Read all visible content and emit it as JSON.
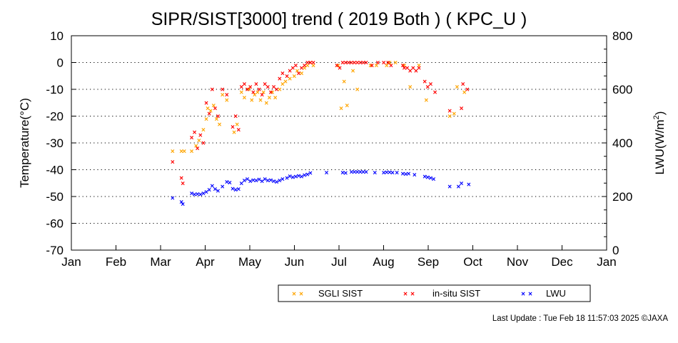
{
  "chart_data": {
    "type": "scatter",
    "title": "SIPR/SIST[3000] trend ( 2019 Both ) ( KPC_U )",
    "ylabel": "Temperature(°C)",
    "y2label_main": "LWU(W/m",
    "y2label_sup": "2",
    "y2label_end": ")",
    "ylim": [
      -70,
      10
    ],
    "y2lim": [
      0,
      800
    ],
    "yticks": [
      "10",
      "0",
      "-10",
      "-20",
      "-30",
      "-40",
      "-50",
      "-60",
      "-70"
    ],
    "y2ticks": [
      "800",
      "600",
      "400",
      "200",
      "0"
    ],
    "months": [
      "Jan",
      "Feb",
      "Mar",
      "Apr",
      "May",
      "Jun",
      "Jul",
      "Aug",
      "Sep",
      "Oct",
      "Nov",
      "Dec",
      "Jan"
    ],
    "grid": true,
    "legend_position": "bottom-right",
    "footer": "Last Update : Tue Feb 18 11:57:03 2025 ©JAXA",
    "series": [
      {
        "name": "SGLI SIST",
        "color": "#ffa500",
        "axis": "left",
        "points": [
          [
            "2019-03-11",
            -33
          ],
          [
            "2019-03-17",
            -33
          ],
          [
            "2019-03-19",
            -33
          ],
          [
            "2019-03-24",
            -33
          ],
          [
            "2019-03-27",
            -31
          ],
          [
            "2019-03-29",
            -29
          ],
          [
            "2019-04-01",
            -25
          ],
          [
            "2019-04-03",
            -21
          ],
          [
            "2019-04-04",
            -17
          ],
          [
            "2019-04-06",
            -18
          ],
          [
            "2019-04-08",
            -16
          ],
          [
            "2019-04-10",
            -21
          ],
          [
            "2019-04-12",
            -23
          ],
          [
            "2019-04-14",
            -12
          ],
          [
            "2019-04-17",
            -14
          ],
          [
            "2019-04-22",
            -26
          ],
          [
            "2019-04-24",
            -23
          ],
          [
            "2019-04-27",
            -11
          ],
          [
            "2019-04-29",
            -13
          ],
          [
            "2019-05-02",
            -10
          ],
          [
            "2019-05-04",
            -14
          ],
          [
            "2019-05-06",
            -12
          ],
          [
            "2019-05-08",
            -11
          ],
          [
            "2019-05-10",
            -14
          ],
          [
            "2019-05-12",
            -11
          ],
          [
            "2019-05-14",
            -15
          ],
          [
            "2019-05-16",
            -13
          ],
          [
            "2019-05-18",
            -11
          ],
          [
            "2019-05-20",
            -13
          ],
          [
            "2019-05-23",
            -10
          ],
          [
            "2019-05-25",
            -8
          ],
          [
            "2019-05-27",
            -7
          ],
          [
            "2019-05-30",
            -6
          ],
          [
            "2019-06-02",
            -5
          ],
          [
            "2019-06-04",
            -3
          ],
          [
            "2019-06-07",
            -4
          ],
          [
            "2019-06-09",
            -2
          ],
          [
            "2019-06-11",
            -1
          ],
          [
            "2019-06-13",
            0
          ],
          [
            "2019-06-15",
            -1
          ],
          [
            "2019-07-02",
            -1
          ],
          [
            "2019-07-04",
            -17
          ],
          [
            "2019-07-06",
            -7
          ],
          [
            "2019-07-08",
            -16
          ],
          [
            "2019-07-12",
            -3
          ],
          [
            "2019-07-15",
            -10
          ],
          [
            "2019-07-24",
            -1
          ],
          [
            "2019-07-28",
            -1
          ],
          [
            "2019-08-04",
            -1
          ],
          [
            "2019-08-06",
            0
          ],
          [
            "2019-08-10",
            0
          ],
          [
            "2019-08-16",
            -1
          ],
          [
            "2019-08-20",
            -9
          ],
          [
            "2019-08-26",
            -1
          ],
          [
            "2019-08-31",
            -14
          ],
          [
            "2019-09-16",
            -20
          ],
          [
            "2019-09-19",
            -19
          ],
          [
            "2019-09-21",
            -9
          ],
          [
            "2019-09-26",
            -11
          ]
        ]
      },
      {
        "name": "in-situ SIST",
        "color": "#ff0000",
        "axis": "left",
        "points": [
          [
            "2019-03-11",
            -37
          ],
          [
            "2019-03-17",
            -43
          ],
          [
            "2019-03-18",
            -45
          ],
          [
            "2019-03-24",
            -28
          ],
          [
            "2019-03-26",
            -26
          ],
          [
            "2019-03-28",
            -32
          ],
          [
            "2019-03-30",
            -27
          ],
          [
            "2019-04-01",
            -30
          ],
          [
            "2019-04-03",
            -15
          ],
          [
            "2019-04-05",
            -19
          ],
          [
            "2019-04-07",
            -10
          ],
          [
            "2019-04-09",
            -17
          ],
          [
            "2019-04-11",
            -20
          ],
          [
            "2019-04-14",
            -10
          ],
          [
            "2019-04-17",
            -12
          ],
          [
            "2019-04-21",
            -24
          ],
          [
            "2019-04-23",
            -20
          ],
          [
            "2019-04-25",
            -25
          ],
          [
            "2019-04-27",
            -9
          ],
          [
            "2019-04-29",
            -8
          ],
          [
            "2019-05-01",
            -10
          ],
          [
            "2019-05-03",
            -9
          ],
          [
            "2019-05-05",
            -11
          ],
          [
            "2019-05-07",
            -8
          ],
          [
            "2019-05-09",
            -10
          ],
          [
            "2019-05-11",
            -12
          ],
          [
            "2019-05-13",
            -8
          ],
          [
            "2019-05-15",
            -9
          ],
          [
            "2019-05-17",
            -11
          ],
          [
            "2019-05-19",
            -9
          ],
          [
            "2019-05-21",
            -10
          ],
          [
            "2019-05-23",
            -6
          ],
          [
            "2019-05-25",
            -4
          ],
          [
            "2019-05-28",
            -5
          ],
          [
            "2019-05-30",
            -3
          ],
          [
            "2019-06-01",
            -2
          ],
          [
            "2019-06-03",
            -1
          ],
          [
            "2019-06-05",
            -4
          ],
          [
            "2019-06-07",
            -2
          ],
          [
            "2019-06-09",
            -1
          ],
          [
            "2019-06-11",
            0
          ],
          [
            "2019-06-13",
            0
          ],
          [
            "2019-06-15",
            0
          ],
          [
            "2019-07-01",
            -1
          ],
          [
            "2019-07-03",
            -2
          ],
          [
            "2019-07-05",
            0
          ],
          [
            "2019-07-07",
            0
          ],
          [
            "2019-07-09",
            0
          ],
          [
            "2019-07-11",
            0
          ],
          [
            "2019-07-13",
            0
          ],
          [
            "2019-07-15",
            0
          ],
          [
            "2019-07-17",
            0
          ],
          [
            "2019-07-19",
            0
          ],
          [
            "2019-07-21",
            0
          ],
          [
            "2019-07-25",
            -1
          ],
          [
            "2019-07-29",
            0
          ],
          [
            "2019-08-02",
            0
          ],
          [
            "2019-08-05",
            0
          ],
          [
            "2019-08-07",
            -1
          ],
          [
            "2019-08-15",
            -1
          ],
          [
            "2019-08-16",
            -2
          ],
          [
            "2019-08-18",
            -2
          ],
          [
            "2019-08-20",
            -3
          ],
          [
            "2019-08-22",
            -2
          ],
          [
            "2019-08-24",
            -3
          ],
          [
            "2019-08-26",
            -2
          ],
          [
            "2019-08-30",
            -7
          ],
          [
            "2019-09-01",
            -9
          ],
          [
            "2019-09-03",
            -8
          ],
          [
            "2019-09-06",
            -11
          ],
          [
            "2019-09-16",
            -18
          ],
          [
            "2019-09-24",
            -17
          ],
          [
            "2019-09-25",
            -8
          ],
          [
            "2019-09-28",
            -10
          ]
        ]
      },
      {
        "name": "LWU",
        "color": "#0000ff",
        "axis": "right",
        "points": [
          [
            "2019-03-11",
            195
          ],
          [
            "2019-03-17",
            180
          ],
          [
            "2019-03-18",
            172
          ],
          [
            "2019-03-24",
            212
          ],
          [
            "2019-03-26",
            208
          ],
          [
            "2019-03-28",
            210
          ],
          [
            "2019-03-30",
            208
          ],
          [
            "2019-04-01",
            212
          ],
          [
            "2019-04-03",
            218
          ],
          [
            "2019-04-05",
            225
          ],
          [
            "2019-04-07",
            240
          ],
          [
            "2019-04-09",
            228
          ],
          [
            "2019-04-11",
            222
          ],
          [
            "2019-04-14",
            238
          ],
          [
            "2019-04-17",
            255
          ],
          [
            "2019-04-19",
            252
          ],
          [
            "2019-04-21",
            230
          ],
          [
            "2019-04-23",
            226
          ],
          [
            "2019-04-25",
            228
          ],
          [
            "2019-04-27",
            250
          ],
          [
            "2019-04-29",
            260
          ],
          [
            "2019-05-01",
            265
          ],
          [
            "2019-05-03",
            258
          ],
          [
            "2019-05-05",
            262
          ],
          [
            "2019-05-07",
            260
          ],
          [
            "2019-05-09",
            264
          ],
          [
            "2019-05-11",
            258
          ],
          [
            "2019-05-13",
            266
          ],
          [
            "2019-05-15",
            260
          ],
          [
            "2019-05-17",
            262
          ],
          [
            "2019-05-19",
            258
          ],
          [
            "2019-05-21",
            255
          ],
          [
            "2019-05-23",
            260
          ],
          [
            "2019-05-25",
            265
          ],
          [
            "2019-05-28",
            270
          ],
          [
            "2019-05-30",
            276
          ],
          [
            "2019-06-01",
            272
          ],
          [
            "2019-06-03",
            275
          ],
          [
            "2019-06-05",
            278
          ],
          [
            "2019-06-07",
            275
          ],
          [
            "2019-06-09",
            280
          ],
          [
            "2019-06-11",
            283
          ],
          [
            "2019-06-13",
            288
          ],
          [
            "2019-06-24",
            290
          ],
          [
            "2019-07-05",
            290
          ],
          [
            "2019-07-07",
            288
          ],
          [
            "2019-07-11",
            292
          ],
          [
            "2019-07-13",
            292
          ],
          [
            "2019-07-15",
            292
          ],
          [
            "2019-07-17",
            292
          ],
          [
            "2019-07-19",
            292
          ],
          [
            "2019-07-21",
            292
          ],
          [
            "2019-07-27",
            290
          ],
          [
            "2019-08-02",
            290
          ],
          [
            "2019-08-04",
            291
          ],
          [
            "2019-08-06",
            291
          ],
          [
            "2019-08-08",
            290
          ],
          [
            "2019-08-11",
            290
          ],
          [
            "2019-08-15",
            285
          ],
          [
            "2019-08-17",
            284
          ],
          [
            "2019-08-19",
            285
          ],
          [
            "2019-08-23",
            282
          ],
          [
            "2019-08-30",
            275
          ],
          [
            "2019-09-01",
            272
          ],
          [
            "2019-09-03",
            270
          ],
          [
            "2019-09-05",
            266
          ],
          [
            "2019-09-16",
            237
          ],
          [
            "2019-09-22",
            238
          ],
          [
            "2019-09-24",
            250
          ],
          [
            "2019-09-29",
            245
          ]
        ]
      }
    ]
  }
}
